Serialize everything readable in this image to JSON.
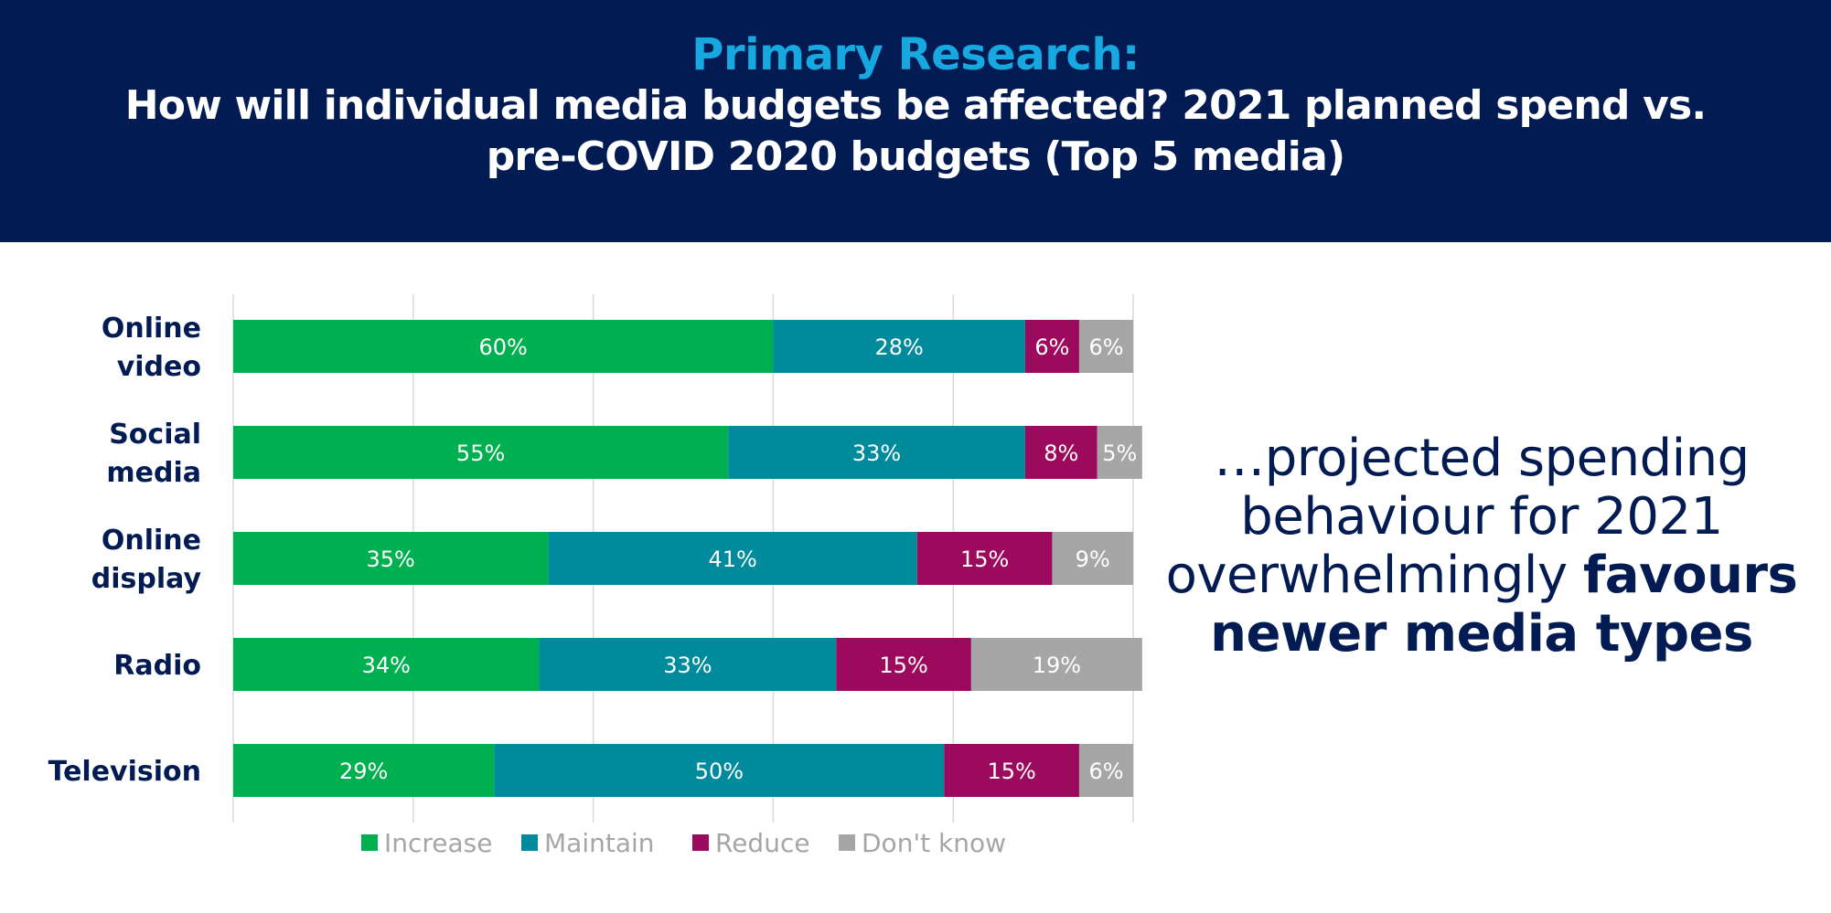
{
  "header": {
    "subtitle": "Primary Research:",
    "title": "How will individual media budgets be affected? 2021 planned spend vs. pre-COVID 2020 budgets (Top 5 media)"
  },
  "side_note": {
    "text_regular": "…projected spending behaviour for 2021 overwhelmingly",
    "text_bold": "favours newer media types"
  },
  "colors": {
    "header_bg": "#021b52",
    "subtitle": "#18a8e0",
    "category_label": "#021b52",
    "legend_text": "#a6a6a6"
  },
  "chart_data": {
    "type": "bar",
    "orientation": "horizontal",
    "stacked": true,
    "categories": [
      "Online video",
      "Social media",
      "Online display",
      "Radio",
      "Television"
    ],
    "category_labels": [
      [
        "Online",
        "video"
      ],
      [
        "Social",
        "media"
      ],
      [
        "Online",
        "display"
      ],
      [
        "Radio"
      ],
      [
        "Television"
      ]
    ],
    "series": [
      {
        "name": "Increase",
        "color": "#00b050",
        "values": [
          60,
          55,
          35,
          34,
          29
        ]
      },
      {
        "name": "Maintain",
        "color": "#008b9c",
        "values": [
          28,
          33,
          41,
          33,
          50
        ]
      },
      {
        "name": "Reduce",
        "color": "#9b0a5c",
        "values": [
          6,
          8,
          15,
          15,
          15
        ]
      },
      {
        "name": "Don't know",
        "color": "#a6a6a6",
        "values": [
          6,
          5,
          9,
          19,
          6
        ]
      }
    ],
    "value_format": "{v}%",
    "xlim": [
      0,
      100
    ],
    "grid": true,
    "legend_position": "bottom"
  }
}
